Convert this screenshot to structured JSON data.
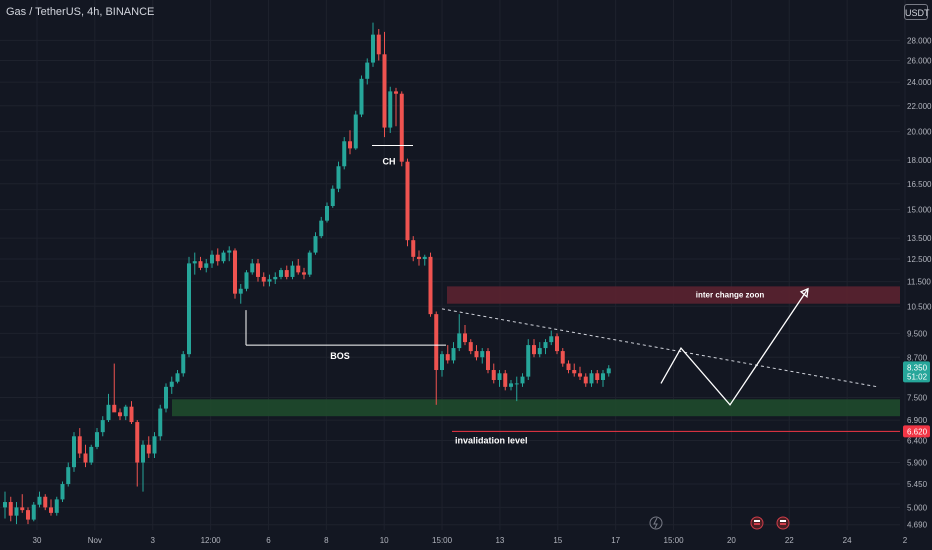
{
  "header": {
    "symbol_title": "Gas / TetherUS, 4h, BINANCE",
    "currency": "USDT"
  },
  "colors": {
    "background": "#131722",
    "up": "#26a69a",
    "down": "#ef5350",
    "grid": "#1e222d",
    "text": "#b2b5be",
    "supply_zone": "#5b2230",
    "demand_zone": "#1f4a2c",
    "invalidation": "#f23645",
    "price_badge": "#26a69a"
  },
  "chart_data": {
    "type": "candlestick",
    "y_scale": "log",
    "ylim": [
      4.6,
      32.5
    ],
    "y_ticks": [
      28,
      26,
      24,
      22,
      20,
      18,
      16.5,
      15,
      13.5,
      12.5,
      11.5,
      10.5,
      9.5,
      8.7,
      7.5,
      6.9,
      6.4,
      5.9,
      5.45,
      5.0,
      4.69
    ],
    "y_tick_labels": [
      "28.000",
      "26.000",
      "24.000",
      "22.000",
      "20.000",
      "18.000",
      "16.500",
      "15.000",
      "13.500",
      "12.500",
      "11.500",
      "10.500",
      "9.500",
      "8.700",
      "7.500",
      "6.900",
      "6.400",
      "5.900",
      "5.450",
      "5.000",
      "4.690"
    ],
    "x_tick_labels": [
      "30",
      "Nov",
      "3",
      "12:00",
      "6",
      "8",
      "10",
      "15:00",
      "13",
      "15",
      "17",
      "15:00",
      "20",
      "22",
      "24",
      "2"
    ],
    "candles": [
      [
        5.0,
        5.3,
        4.8,
        5.1
      ],
      [
        5.1,
        5.2,
        4.75,
        4.85
      ],
      [
        4.85,
        5.1,
        4.7,
        5.0
      ],
      [
        5.0,
        5.25,
        4.9,
        4.95
      ],
      [
        4.95,
        5.0,
        4.7,
        4.78
      ],
      [
        4.78,
        5.1,
        4.75,
        5.05
      ],
      [
        5.05,
        5.3,
        5.0,
        5.2
      ],
      [
        5.2,
        5.25,
        4.95,
        5.0
      ],
      [
        5.0,
        5.15,
        4.85,
        4.9
      ],
      [
        4.9,
        5.2,
        4.85,
        5.15
      ],
      [
        5.15,
        5.5,
        5.1,
        5.45
      ],
      [
        5.45,
        5.9,
        5.4,
        5.8
      ],
      [
        5.8,
        6.6,
        5.7,
        6.5
      ],
      [
        6.5,
        6.7,
        6.0,
        6.1
      ],
      [
        6.1,
        6.3,
        5.8,
        5.9
      ],
      [
        5.9,
        6.3,
        5.85,
        6.25
      ],
      [
        6.25,
        6.7,
        6.2,
        6.6
      ],
      [
        6.6,
        7.0,
        6.5,
        6.9
      ],
      [
        6.9,
        7.6,
        6.85,
        7.3
      ],
      [
        7.3,
        8.5,
        7.2,
        7.1
      ],
      [
        7.1,
        7.2,
        6.9,
        7.0
      ],
      [
        7.0,
        7.3,
        6.9,
        7.25
      ],
      [
        7.25,
        7.4,
        6.8,
        6.85
      ],
      [
        6.85,
        6.9,
        5.4,
        5.9
      ],
      [
        5.9,
        6.4,
        5.3,
        6.3
      ],
      [
        6.3,
        6.5,
        6.0,
        6.1
      ],
      [
        6.1,
        6.6,
        6.0,
        6.5
      ],
      [
        6.5,
        7.3,
        6.4,
        7.2
      ],
      [
        7.2,
        7.9,
        7.1,
        7.8
      ],
      [
        7.8,
        8.1,
        7.6,
        7.95
      ],
      [
        7.95,
        8.3,
        7.9,
        8.2
      ],
      [
        8.2,
        8.9,
        8.1,
        8.8
      ],
      [
        8.8,
        12.6,
        8.7,
        12.3
      ],
      [
        12.3,
        12.8,
        11.8,
        12.4
      ],
      [
        12.4,
        12.6,
        12.0,
        12.1
      ],
      [
        12.1,
        12.5,
        11.9,
        12.3
      ],
      [
        12.3,
        12.9,
        12.1,
        12.7
      ],
      [
        12.7,
        13.0,
        12.2,
        12.4
      ],
      [
        12.4,
        12.9,
        12.3,
        12.8
      ],
      [
        12.8,
        13.1,
        12.4,
        12.9
      ],
      [
        12.9,
        13.0,
        10.8,
        11.0
      ],
      [
        11.0,
        11.4,
        10.6,
        11.2
      ],
      [
        11.2,
        12.0,
        11.1,
        11.9
      ],
      [
        11.9,
        12.5,
        11.8,
        12.3
      ],
      [
        12.3,
        12.5,
        11.5,
        11.7
      ],
      [
        11.7,
        11.9,
        11.3,
        11.5
      ],
      [
        11.5,
        11.8,
        11.3,
        11.6
      ],
      [
        11.6,
        11.9,
        11.4,
        11.7
      ],
      [
        11.7,
        12.1,
        11.6,
        12.0
      ],
      [
        12.0,
        12.2,
        11.6,
        11.7
      ],
      [
        11.7,
        12.4,
        11.6,
        12.2
      ],
      [
        12.2,
        12.5,
        11.8,
        11.9
      ],
      [
        11.9,
        12.1,
        11.6,
        11.8
      ],
      [
        11.8,
        12.9,
        11.7,
        12.8
      ],
      [
        12.8,
        13.8,
        12.7,
        13.6
      ],
      [
        13.6,
        14.6,
        13.5,
        14.4
      ],
      [
        14.4,
        15.4,
        14.3,
        15.2
      ],
      [
        15.2,
        16.4,
        15.1,
        16.2
      ],
      [
        16.2,
        17.9,
        16.0,
        17.6
      ],
      [
        17.6,
        19.6,
        17.4,
        19.3
      ],
      [
        19.3,
        20.1,
        18.4,
        18.8
      ],
      [
        18.8,
        21.6,
        18.7,
        21.3
      ],
      [
        21.3,
        24.6,
        21.1,
        24.3
      ],
      [
        24.3,
        26.2,
        23.8,
        25.8
      ],
      [
        25.8,
        29.9,
        25.4,
        28.6
      ],
      [
        28.6,
        29.2,
        26.0,
        26.6
      ],
      [
        26.6,
        28.9,
        19.6,
        20.3
      ],
      [
        20.3,
        23.6,
        19.9,
        23.2
      ],
      [
        23.2,
        23.5,
        20.4,
        23.0
      ],
      [
        23.0,
        23.2,
        17.6,
        17.9
      ],
      [
        17.9,
        18.1,
        13.1,
        13.4
      ],
      [
        13.4,
        13.6,
        12.4,
        12.6
      ],
      [
        12.6,
        12.9,
        12.2,
        12.5
      ],
      [
        12.5,
        12.7,
        12.2,
        12.6
      ],
      [
        12.6,
        12.8,
        10.1,
        10.2
      ],
      [
        10.2,
        10.3,
        7.3,
        8.3
      ],
      [
        8.3,
        8.9,
        8.1,
        8.8
      ],
      [
        8.8,
        9.1,
        8.5,
        8.6
      ],
      [
        8.6,
        9.2,
        8.5,
        9.0
      ],
      [
        9.0,
        10.2,
        8.9,
        9.5
      ],
      [
        9.5,
        9.8,
        9.1,
        9.2
      ],
      [
        9.2,
        9.3,
        8.8,
        8.9
      ],
      [
        8.9,
        9.1,
        8.6,
        8.7
      ],
      [
        8.7,
        9.0,
        8.5,
        8.9
      ],
      [
        8.9,
        9.0,
        8.2,
        8.3
      ],
      [
        8.3,
        8.5,
        7.9,
        8.0
      ],
      [
        8.0,
        8.3,
        7.8,
        8.2
      ],
      [
        8.2,
        8.3,
        7.7,
        7.8
      ],
      [
        7.8,
        8.0,
        7.7,
        7.9
      ],
      [
        7.9,
        8.1,
        7.4,
        7.9
      ],
      [
        7.9,
        8.2,
        7.8,
        8.1
      ],
      [
        8.1,
        9.3,
        8.0,
        9.1
      ],
      [
        9.1,
        9.3,
        8.7,
        8.8
      ],
      [
        8.8,
        9.2,
        8.7,
        9.0
      ],
      [
        9.0,
        9.3,
        8.8,
        9.2
      ],
      [
        9.2,
        9.6,
        9.1,
        9.4
      ],
      [
        9.4,
        9.5,
        8.8,
        8.9
      ],
      [
        8.9,
        9.0,
        8.4,
        8.5
      ],
      [
        8.5,
        8.6,
        8.2,
        8.3
      ],
      [
        8.3,
        8.5,
        8.1,
        8.2
      ],
      [
        8.2,
        8.4,
        8.0,
        8.1
      ],
      [
        8.1,
        8.2,
        7.8,
        7.9
      ],
      [
        7.9,
        8.3,
        7.8,
        8.2
      ],
      [
        8.2,
        8.3,
        7.9,
        8.0
      ],
      [
        8.0,
        8.3,
        7.8,
        8.2
      ],
      [
        8.2,
        8.45,
        8.1,
        8.35
      ]
    ],
    "current_price": 8.35,
    "current_price_label": "8.350",
    "countdown_label": "51:02",
    "invalidation_price": 6.62,
    "invalidation_price_label": "6.620",
    "supply_zone": [
      10.6,
      11.3
    ],
    "demand_zone": [
      7.0,
      7.45
    ],
    "annotations": {
      "ch": "CH",
      "bos": "BOS",
      "supply_zone_label": "inter change zoon",
      "invalidation_label": "invalidation level"
    },
    "levels": {
      "ch": 19.0,
      "bos": 9.1
    },
    "trendline": [
      [
        76,
        10.4
      ],
      [
        117,
        7.8
      ]
    ],
    "projection": [
      [
        101,
        7.9
      ],
      [
        104,
        9.0
      ],
      [
        108,
        7.3
      ],
      [
        114,
        11.2
      ]
    ],
    "grid": true,
    "legend": "none"
  }
}
